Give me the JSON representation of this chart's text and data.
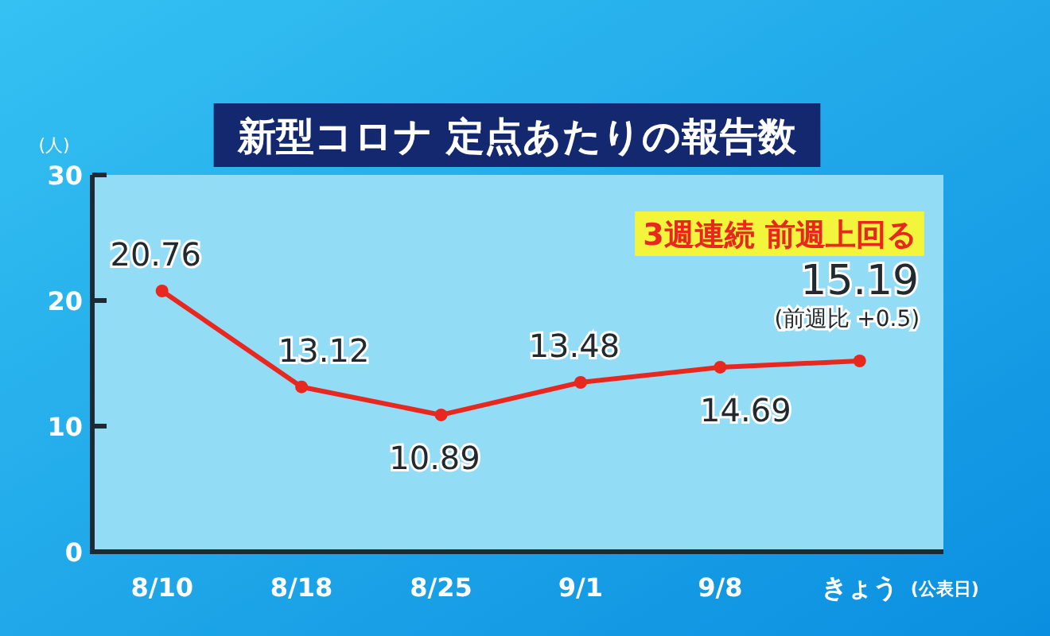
{
  "chart_data": {
    "type": "line",
    "title": "新型コロナ  定点あたりの報告数",
    "ylabel": "(人)",
    "xlabel": "(公表日)",
    "categories": [
      "8/10",
      "8/18",
      "8/25",
      "9/1",
      "9/8",
      "きょう"
    ],
    "series": [
      {
        "color": "#e8281e",
        "values": [
          20.76,
          13.12,
          10.89,
          13.48,
          14.69,
          15.19
        ]
      }
    ],
    "ylim": [
      0,
      30
    ],
    "yticks": [
      0,
      10,
      20,
      30
    ],
    "marker": "circle",
    "data_labels": true,
    "annotations": [
      "3週連続  前週上回る",
      "(前週比 +0.5)"
    ]
  }
}
